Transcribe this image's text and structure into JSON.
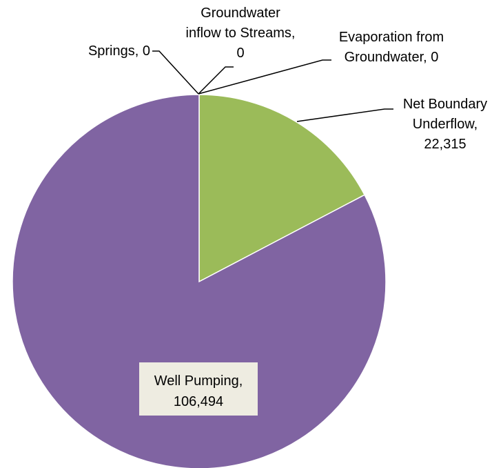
{
  "chart_data": {
    "type": "pie",
    "slices": [
      {
        "label_lines": [
          "Springs, 0"
        ],
        "value": 0,
        "color": "#4472c4"
      },
      {
        "label_lines": [
          "Groundwater",
          "inflow to Streams,",
          "0"
        ],
        "value": 0,
        "color": "#c0504d"
      },
      {
        "label_lines": [
          "Evaporation from",
          "Groundwater, 0"
        ],
        "value": 0,
        "color": "#4bacc6"
      },
      {
        "label_lines": [
          "Net Boundary",
          "Underflow,",
          "22,315"
        ],
        "value": 22315,
        "color": "#9bbb59"
      },
      {
        "label_lines": [
          "Well Pumping,",
          "106,494"
        ],
        "value": 106494,
        "color": "#8064a2"
      }
    ],
    "title": "",
    "legend": "none",
    "data_label_box_color": "#eeece1"
  }
}
